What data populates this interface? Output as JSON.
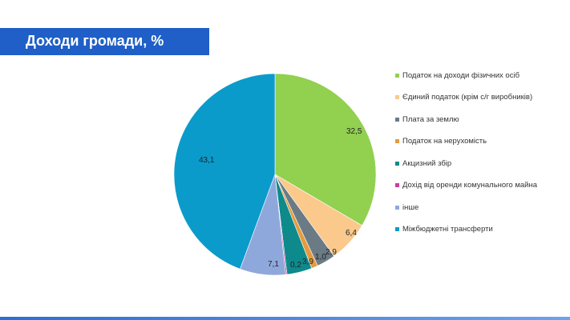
{
  "page": {
    "title": "Доходи громади,  %",
    "title_bar_color": "#1f5fc7"
  },
  "chart_data": {
    "type": "pie",
    "categories": [
      "Податок  на доходи фізичних осіб",
      "Єдиний податок  (крім с/г виробників)",
      "Плата  за землю",
      "Податок  на нерухомість",
      "Акцизний  збір",
      "Дохід від оренди комунального  майна",
      "інше",
      "Міжбюджетні  трансферти"
    ],
    "values": [
      32.5,
      6.4,
      2.9,
      1.0,
      3.9,
      0.2,
      7.1,
      43.1
    ],
    "value_labels": [
      "32,5",
      "6,4",
      "2,9",
      "1,0",
      "3,9",
      "0,2",
      "7,1",
      "43,1"
    ],
    "colors": [
      "#92d050",
      "#fac98b",
      "#6b7b86",
      "#e49b3e",
      "#0e8a8c",
      "#c8409a",
      "#8fa8dc",
      "#0a9bcb"
    ],
    "legend_position": "right",
    "start_angle": "12 o'clock, clockwise"
  }
}
